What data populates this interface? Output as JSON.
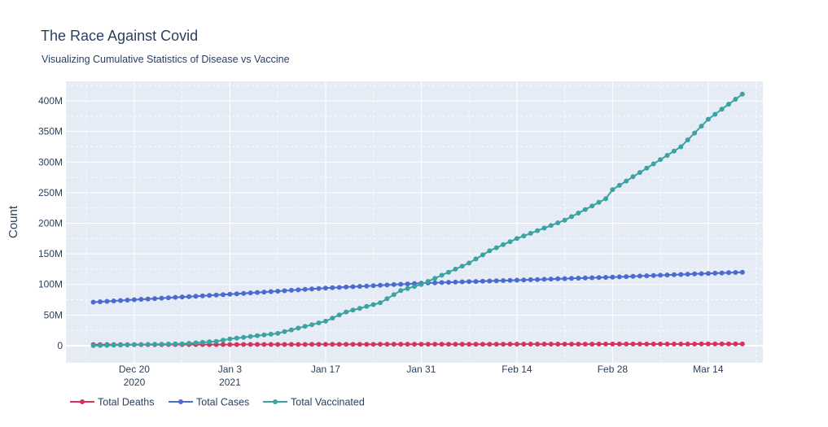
{
  "chart_data": {
    "type": "line",
    "title": "The Race Against Covid",
    "subtitle": "Visualizing Cumulative Statistics of Disease vs Vaccine",
    "xlabel": "",
    "ylabel": "Count",
    "x_range": [
      "2020-12-10",
      "2021-03-22"
    ],
    "ylim": [
      -28000000,
      432000000
    ],
    "y_ticks": [
      0,
      50000000,
      100000000,
      150000000,
      200000000,
      250000000,
      300000000,
      350000000,
      400000000
    ],
    "y_tick_labels": [
      "0",
      "50M",
      "100M",
      "150M",
      "200M",
      "250M",
      "300M",
      "350M",
      "400M"
    ],
    "x_ticks": [
      "2020-12-20",
      "2021-01-03",
      "2021-01-17",
      "2021-01-31",
      "2021-02-14",
      "2021-02-28",
      "2021-03-14"
    ],
    "x_tick_labels": [
      [
        "Dec 20",
        "2020"
      ],
      [
        "Jan 3",
        "2021"
      ],
      [
        "Jan 17"
      ],
      [
        "Jan 31"
      ],
      [
        "Feb 14"
      ],
      [
        "Feb 28"
      ],
      [
        "Mar 14"
      ]
    ],
    "grid": true,
    "legend_position": "bottom-left",
    "x_start": "2020-12-14",
    "x_end": "2021-03-19",
    "series": [
      {
        "name": "Total Deaths",
        "color": "#d6325e",
        "knots": [
          [
            "2020-12-14",
            1600000
          ],
          [
            "2021-01-01",
            1800000
          ],
          [
            "2021-01-20",
            2050000
          ],
          [
            "2021-02-10",
            2350000
          ],
          [
            "2021-03-01",
            2550000
          ],
          [
            "2021-03-19",
            2700000
          ]
        ]
      },
      {
        "name": "Total Cases",
        "color": "#4a6bd0",
        "knots": [
          [
            "2020-12-14",
            71000000
          ],
          [
            "2020-12-20",
            75000000
          ],
          [
            "2021-01-03",
            84000000
          ],
          [
            "2021-01-17",
            94000000
          ],
          [
            "2021-01-31",
            102000000
          ],
          [
            "2021-02-14",
            107000000
          ],
          [
            "2021-02-28",
            112000000
          ],
          [
            "2021-03-14",
            118000000
          ],
          [
            "2021-03-19",
            120000000
          ]
        ]
      },
      {
        "name": "Total Vaccinated",
        "color": "#3ba3a0",
        "knots": [
          [
            "2020-12-14",
            0
          ],
          [
            "2020-12-20",
            1500000
          ],
          [
            "2020-12-27",
            3000000
          ],
          [
            "2021-01-01",
            7000000
          ],
          [
            "2021-01-03",
            11000000
          ],
          [
            "2021-01-10",
            20000000
          ],
          [
            "2021-01-17",
            40000000
          ],
          [
            "2021-01-20",
            55000000
          ],
          [
            "2021-01-25",
            70000000
          ],
          [
            "2021-01-28",
            90000000
          ],
          [
            "2021-01-31",
            100000000
          ],
          [
            "2021-02-03",
            115000000
          ],
          [
            "2021-02-07",
            135000000
          ],
          [
            "2021-02-10",
            155000000
          ],
          [
            "2021-02-14",
            175000000
          ],
          [
            "2021-02-21",
            205000000
          ],
          [
            "2021-02-27",
            240000000
          ],
          [
            "2021-02-28",
            255000000
          ],
          [
            "2021-03-05",
            290000000
          ],
          [
            "2021-03-10",
            325000000
          ],
          [
            "2021-03-14",
            370000000
          ],
          [
            "2021-03-19",
            411000000
          ]
        ]
      }
    ]
  }
}
